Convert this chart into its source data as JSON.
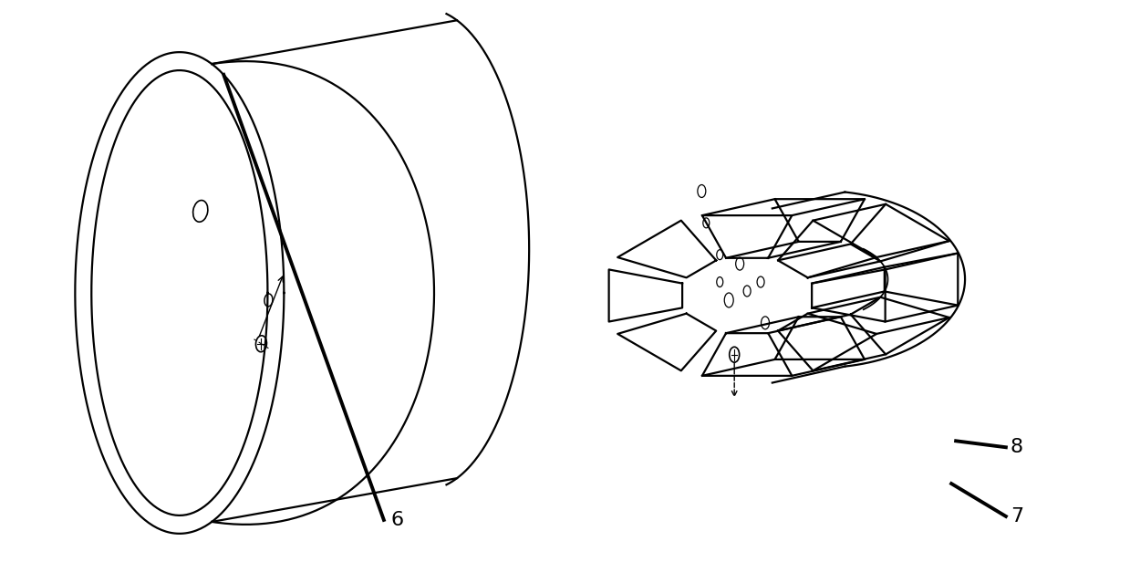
{
  "background_color": "#ffffff",
  "line_color": "#000000",
  "lw": 1.6,
  "tlw": 2.8,
  "fig_w": 12.39,
  "fig_h": 6.39,
  "label_6": "6",
  "label_7": "7",
  "label_8": "8",
  "fs": 16
}
